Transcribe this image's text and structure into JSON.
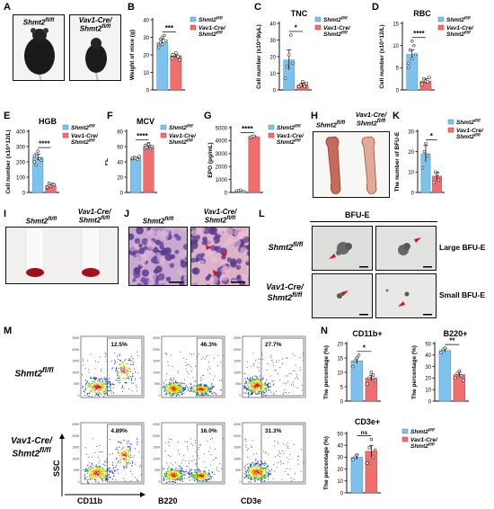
{
  "colors": {
    "blue": "#7cc2ec",
    "red": "#f06e6e",
    "blue_edge": "#3a8fd0",
    "red_edge": "#c93c3c"
  },
  "genotypes": {
    "wt": "Shmt2fl/fl",
    "ko": "Vav1-Cre/Shmt2fl/fl"
  },
  "legend": {
    "wt": "Shmt2",
    "wt_sup": "fl/fl",
    "ko_line1": "Vav1-Cre/",
    "ko_line2": "Shmt2",
    "ko_sup": "fl/fl"
  },
  "panels": {
    "A": {
      "letter": "A",
      "wt_cap_main": "Shmt2",
      "wt_cap_sup": "fl/fl",
      "ko_cap_line1": "Vav1-Cre/",
      "ko_cap_main": "Shmt2",
      "ko_cap_sup": "fl/fl"
    },
    "H": {
      "letter": "H",
      "wt_cap_main": "Shmt2",
      "wt_cap_sup": "fl/fl",
      "ko_cap_line1": "Vav1-Cre/",
      "ko_cap_main": "Shmt2",
      "ko_cap_sup": "fl/fl"
    },
    "I": {
      "letter": "I",
      "wt_cap_main": "Shmt2",
      "wt_cap_sup": "fl/fl",
      "ko_cap_line1": "Vav1-Cre/",
      "ko_cap_main": "Shmt2",
      "ko_cap_sup": "fl/fl"
    },
    "J": {
      "letter": "J",
      "wt_cap_main": "Shmt2",
      "wt_cap_sup": "fl/fl",
      "ko_cap_line1": "Vav1-Cre/",
      "ko_cap_main": "Shmt2",
      "ko_cap_sup": "fl/fl"
    },
    "L": {
      "letter": "L",
      "header": "BFU-E",
      "row1_label": "Large BFU-E",
      "row2_label": "Small BFU-E",
      "wt_cap_main": "Shmt2",
      "wt_cap_sup": "fl/fl",
      "ko_cap_line1": "Vav1-Cre/",
      "ko_cap_main": "Shmt2",
      "ko_cap_sup": "fl/fl"
    },
    "M": {
      "letter": "M",
      "wt_cap_main": "Shmt2",
      "wt_cap_sup": "fl/fl",
      "ko_cap_line1": "Vav1-Cre/",
      "ko_cap_main": "Shmt2",
      "ko_cap_sup": "fl/fl",
      "yaxis": "SSC",
      "markers": [
        "CD11b",
        "B220",
        "CD3e"
      ],
      "wt_pcts": [
        "12.5%",
        "46.3%",
        "27.7%"
      ],
      "ko_pcts": [
        "4.89%",
        "16.0%",
        "31.3%"
      ]
    },
    "N": {
      "letter": "N"
    }
  },
  "chart_data": [
    {
      "id": "B",
      "type": "bar",
      "title": "",
      "ylabel": "Weight of mice (g)",
      "ylim": [
        0,
        40
      ],
      "yticks": [
        0,
        10,
        20,
        30,
        40
      ],
      "sig": "***",
      "legend": "top-right",
      "series": [
        {
          "name": "Shmt2fl/fl",
          "mean": 27,
          "err": 2,
          "points": [
            25,
            29,
            26,
            31,
            28,
            24,
            27,
            30
          ]
        },
        {
          "name": "Vav1-Cre/Shmt2fl/fl",
          "mean": 19.5,
          "err": 1,
          "points": [
            18,
            20,
            21,
            19,
            17,
            20
          ]
        }
      ]
    },
    {
      "id": "C",
      "type": "bar",
      "title": "TNC",
      "ylabel": "Cell number (x10^9/μL)",
      "ylim": [
        0,
        40
      ],
      "yticks": [
        0,
        10,
        20,
        30,
        40
      ],
      "sig": "*",
      "legend": "top-right",
      "series": [
        {
          "name": "Shmt2fl/fl",
          "mean": 18,
          "err": 6,
          "points": [
            7,
            14,
            21,
            33,
            16
          ]
        },
        {
          "name": "Vav1-Cre/Shmt2fl/fl",
          "mean": 3,
          "err": 1,
          "points": [
            2,
            3,
            5,
            2,
            4
          ]
        }
      ]
    },
    {
      "id": "D",
      "type": "bar",
      "title": "RBC",
      "ylabel": "Cell number (x10^12/L)",
      "ylim": [
        0,
        15
      ],
      "yticks": [
        0,
        5,
        10,
        15
      ],
      "sig": "****",
      "legend": "top-right",
      "series": [
        {
          "name": "Shmt2fl/fl",
          "mean": 8,
          "err": 1,
          "points": [
            6,
            9,
            7,
            10,
            8,
            5,
            9,
            11
          ]
        },
        {
          "name": "Vav1-Cre/Shmt2fl/fl",
          "mean": 2,
          "err": 0.5,
          "points": [
            1.5,
            2.5,
            2,
            1.8,
            2.8,
            1.2
          ]
        }
      ]
    },
    {
      "id": "E",
      "type": "bar",
      "title": "HGB",
      "ylabel": "Cell number (x10^12/L)",
      "ylim": [
        0,
        400
      ],
      "yticks": [
        0,
        100,
        200,
        300,
        400
      ],
      "sig": "****",
      "legend": "top-right",
      "series": [
        {
          "name": "Shmt2fl/fl",
          "mean": 230,
          "err": 20,
          "points": [
            200,
            250,
            270,
            220,
            210,
            240,
            180
          ]
        },
        {
          "name": "Vav1-Cre/Shmt2fl/fl",
          "mean": 45,
          "err": 8,
          "points": [
            30,
            60,
            40,
            55,
            50,
            35,
            45
          ]
        }
      ]
    },
    {
      "id": "F",
      "type": "bar",
      "title": "MCV",
      "ylabel": "FL",
      "ylim": [
        0,
        80
      ],
      "yticks": [
        0,
        20,
        40,
        60,
        80
      ],
      "sig": "****",
      "legend": "top-right",
      "series": [
        {
          "name": "Shmt2fl/fl",
          "mean": 45,
          "err": 1,
          "points": [
            44,
            46,
            45,
            43,
            47,
            45
          ]
        },
        {
          "name": "Vav1-Cre/Shmt2fl/fl",
          "mean": 60,
          "err": 2,
          "points": [
            58,
            62,
            64,
            57,
            60,
            61,
            59,
            63
          ]
        }
      ]
    },
    {
      "id": "G",
      "type": "bar",
      "title": "",
      "ylabel": "EPO (pg/mL)",
      "ylim": [
        0,
        5000
      ],
      "yticks": [
        0,
        1000,
        2000,
        3000,
        4000,
        5000
      ],
      "sig": "****",
      "legend": "top-right",
      "series": [
        {
          "name": "Shmt2fl/fl",
          "mean": 150,
          "err": 20,
          "points": [
            120,
            150,
            180
          ]
        },
        {
          "name": "Vav1-Cre/Shmt2fl/fl",
          "mean": 4300,
          "err": 40,
          "points": [
            4250,
            4300,
            4350
          ]
        }
      ]
    },
    {
      "id": "K",
      "type": "bar",
      "title": "",
      "ylabel": "The number of BFU-E",
      "ylim": [
        0,
        30
      ],
      "yticks": [
        0,
        10,
        20,
        30
      ],
      "sig": "*",
      "legend": "top-right",
      "series": [
        {
          "name": "Shmt2fl/fl",
          "mean": 19,
          "err": 4,
          "points": [
            12,
            20,
            24,
            18
          ]
        },
        {
          "name": "Vav1-Cre/Shmt2fl/fl",
          "mean": 8,
          "err": 2,
          "points": [
            5,
            10,
            9,
            6
          ]
        }
      ]
    },
    {
      "id": "N1",
      "type": "bar",
      "title": "CD11b+",
      "ylabel": "The percentage (%)",
      "ylim": [
        0,
        20
      ],
      "yticks": [
        0,
        5,
        10,
        15,
        20
      ],
      "sig": "*",
      "legend": "",
      "series": [
        {
          "name": "Shmt2fl/fl",
          "mean": 14,
          "err": 1,
          "points": [
            12,
            14,
            15,
            16
          ]
        },
        {
          "name": "Vav1-Cre/Shmt2fl/fl",
          "mean": 8,
          "err": 1,
          "points": [
            6,
            8,
            10,
            9,
            7
          ]
        }
      ]
    },
    {
      "id": "N2",
      "type": "bar",
      "title": "B220+",
      "ylabel": "The percentage (%)",
      "ylim": [
        0,
        50
      ],
      "yticks": [
        0,
        10,
        20,
        30,
        40,
        50
      ],
      "sig": "**",
      "legend": "",
      "series": [
        {
          "name": "Shmt2fl/fl",
          "mean": 44,
          "err": 1.5,
          "points": [
            42,
            45,
            46
          ]
        },
        {
          "name": "Vav1-Cre/Shmt2fl/fl",
          "mean": 23,
          "err": 2,
          "points": [
            20,
            24,
            26,
            22,
            18
          ]
        }
      ]
    },
    {
      "id": "N3",
      "type": "bar",
      "title": "CD3e+",
      "ylabel": "The percentage (%)",
      "ylim": [
        0,
        50
      ],
      "yticks": [
        0,
        10,
        20,
        30,
        40,
        50
      ],
      "sig": "ns",
      "legend": "right",
      "series": [
        {
          "name": "Shmt2fl/fl",
          "mean": 30,
          "err": 2,
          "points": [
            28,
            30,
            32
          ]
        },
        {
          "name": "Vav1-Cre/Shmt2fl/fl",
          "mean": 35,
          "err": 5,
          "points": [
            25,
            38,
            45,
            30,
            36
          ]
        }
      ]
    }
  ]
}
